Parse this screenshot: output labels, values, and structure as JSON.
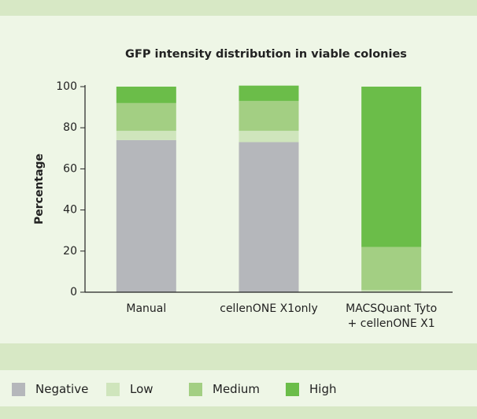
{
  "chart_data": {
    "type": "stacked_bar",
    "title": "GFP intensity distribution in viable colonies",
    "y_label": "Percentage",
    "categories": [
      "Manual",
      "cellenONE X1only",
      "MACSQuant Tyto\n+ cellenONE X1"
    ],
    "series": [
      {
        "name": "Negative",
        "color": "#b5b7bb",
        "values": [
          74,
          73,
          0
        ]
      },
      {
        "name": "Low",
        "color": "#cfe5bc",
        "values": [
          4.5,
          5.5,
          1
        ]
      },
      {
        "name": "Medium",
        "color": "#a3cf83",
        "values": [
          13.5,
          14.5,
          21
        ]
      },
      {
        "name": "High",
        "color": "#6bbd49",
        "values": [
          8,
          7.5,
          78
        ]
      }
    ],
    "ylim": [
      0,
      100
    ],
    "yticks": [
      0,
      20,
      40,
      60,
      80,
      100
    ],
    "grid": false
  }
}
